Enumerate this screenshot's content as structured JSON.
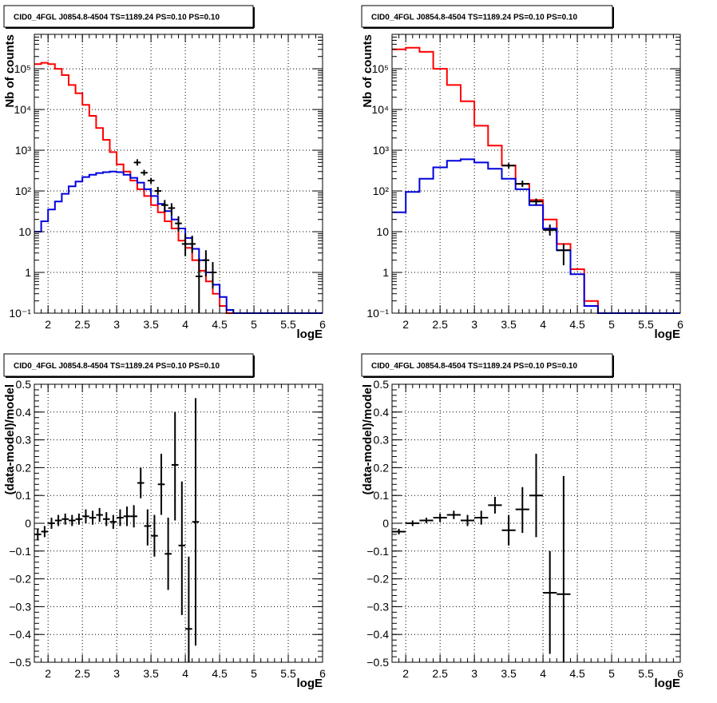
{
  "colors": {
    "data": "#000000",
    "total_model": "#ff0000",
    "source_model": "#0000dd",
    "grid": "#000000"
  },
  "chart_data": [
    {
      "type": "line",
      "title": "CID0_4FGL J0854.8-4504 TS=1189.24 PS=0.10 PS=0.10",
      "xlabel": "logE",
      "ylabel": "Nb of counts",
      "xlim": [
        1.8,
        6.0
      ],
      "ylim": [
        0.1,
        700000
      ],
      "yscale": "log",
      "grid": true,
      "xticks": [
        2,
        2.5,
        3,
        3.5,
        4,
        4.5,
        5,
        5.5,
        6
      ],
      "xtick_labels": [
        "2",
        "2.5",
        "3",
        "3.5",
        "4",
        "4.5",
        "5",
        "5.5",
        "6"
      ],
      "yticks": [
        0.1,
        1,
        10,
        100,
        1000,
        10000,
        100000
      ],
      "ytick_labels": [
        "10⁻¹",
        "1",
        "10",
        "10²",
        "10³",
        "10⁴",
        "10⁵"
      ],
      "series": [
        {
          "type": "step",
          "color_key": "total_model",
          "edges": [
            1.8,
            1.9,
            2.0,
            2.1,
            2.2,
            2.3,
            2.4,
            2.5,
            2.6,
            2.7,
            2.8,
            2.9,
            3.0,
            3.1,
            3.2,
            3.3,
            3.4,
            3.5,
            3.6,
            3.7,
            3.8,
            3.9,
            4.0,
            4.1,
            4.2,
            4.3,
            4.4,
            4.5,
            4.6,
            4.7,
            4.8,
            4.9,
            5.0,
            5.1,
            5.2,
            5.3,
            5.4,
            5.5,
            5.6,
            5.7,
            5.8,
            5.9,
            6.0
          ],
          "values": [
            130000,
            140000,
            130000,
            100000,
            70000,
            40000,
            25000,
            13000,
            7000,
            3500,
            1800,
            900,
            450,
            300,
            180,
            110,
            75,
            45,
            30,
            18,
            12,
            6,
            4,
            2,
            1.1,
            0.6,
            0.3,
            0.15,
            0.1,
            0.1,
            0.1,
            0.1,
            0.1,
            0.1,
            0.1,
            0.1,
            0.1,
            0.1,
            0.1,
            0.1,
            0.1,
            0.1
          ]
        },
        {
          "type": "step",
          "color_key": "source_model",
          "edges": [
            1.8,
            1.9,
            2.0,
            2.1,
            2.2,
            2.3,
            2.4,
            2.5,
            2.6,
            2.7,
            2.8,
            2.9,
            3.0,
            3.1,
            3.2,
            3.3,
            3.4,
            3.5,
            3.6,
            3.7,
            3.8,
            3.9,
            4.0,
            4.1,
            4.2,
            4.3,
            4.4,
            4.5,
            4.6,
            4.7,
            4.8,
            4.9,
            5.0,
            5.1,
            5.2,
            5.3,
            5.4,
            5.5,
            5.6,
            5.7,
            5.8,
            5.9,
            6.0
          ],
          "values": [
            10,
            18,
            35,
            55,
            85,
            130,
            170,
            220,
            250,
            275,
            290,
            300,
            290,
            250,
            210,
            160,
            110,
            75,
            48,
            32,
            20,
            12,
            7,
            3.8,
            2,
            1,
            0.5,
            0.25,
            0.12,
            0.1,
            0.1,
            0.1,
            0.1,
            0.1,
            0.1,
            0.1,
            0.1,
            0.1,
            0.1,
            0.1,
            0.1,
            0.1
          ]
        }
      ],
      "points": [
        {
          "x": 3.3,
          "y": 500,
          "xerr": 0.05,
          "ylo": 420,
          "yhi": 600
        },
        {
          "x": 3.4,
          "y": 280,
          "xerr": 0.05,
          "ylo": 240,
          "yhi": 330
        },
        {
          "x": 3.5,
          "y": 180,
          "xerr": 0.05,
          "ylo": 150,
          "yhi": 210
        },
        {
          "x": 3.6,
          "y": 100,
          "xerr": 0.05,
          "ylo": 80,
          "yhi": 125
        },
        {
          "x": 3.7,
          "y": 45,
          "xerr": 0.05,
          "ylo": 30,
          "yhi": 60
        },
        {
          "x": 3.8,
          "y": 38,
          "xerr": 0.05,
          "ylo": 25,
          "yhi": 50
        },
        {
          "x": 3.9,
          "y": 16,
          "xerr": 0.05,
          "ylo": 10,
          "yhi": 24
        },
        {
          "x": 4.0,
          "y": 5,
          "xerr": 0.05,
          "ylo": 2.5,
          "yhi": 9
        },
        {
          "x": 4.1,
          "y": 5,
          "xerr": 0.05,
          "ylo": 3,
          "yhi": 8
        },
        {
          "x": 4.2,
          "y": 0.8,
          "xerr": 0.05,
          "ylo": 0.1,
          "yhi": 2.2
        },
        {
          "x": 4.3,
          "y": 2,
          "xerr": 0.05,
          "ylo": 0.8,
          "yhi": 3.5
        },
        {
          "x": 4.4,
          "y": 1,
          "xerr": 0.05,
          "ylo": 0.4,
          "yhi": 1.8
        }
      ]
    },
    {
      "type": "line",
      "title": "CID0_4FGL J0854.8-4504 TS=1189.24 PS=0.10 PS=0.10",
      "xlabel": "logE",
      "ylabel": "Nb of counts",
      "xlim": [
        1.8,
        6.0
      ],
      "ylim": [
        0.1,
        700000
      ],
      "yscale": "log",
      "grid": true,
      "xticks": [
        2,
        2.5,
        3,
        3.5,
        4,
        4.5,
        5,
        5.5,
        6
      ],
      "xtick_labels": [
        "2",
        "2.5",
        "3",
        "3.5",
        "4",
        "4.5",
        "5",
        "5.5",
        "6"
      ],
      "yticks": [
        0.1,
        1,
        10,
        100,
        1000,
        10000,
        100000
      ],
      "ytick_labels": [
        "10⁻¹",
        "1",
        "10",
        "10²",
        "10³",
        "10⁴",
        "10⁵"
      ],
      "series": [
        {
          "type": "step",
          "color_key": "total_model",
          "edges": [
            1.8,
            2.0,
            2.2,
            2.4,
            2.6,
            2.8,
            3.0,
            3.2,
            3.4,
            3.6,
            3.8,
            4.0,
            4.2,
            4.4,
            4.6,
            4.8,
            5.0,
            5.2,
            5.4,
            5.6,
            5.8,
            6.0
          ],
          "values": [
            300000,
            330000,
            260000,
            100000,
            40000,
            16000,
            4000,
            1300,
            420,
            150,
            60,
            20,
            5,
            1.2,
            0.2,
            0.1,
            0.1,
            0.1,
            0.1,
            0.1,
            0.1
          ]
        },
        {
          "type": "step",
          "color_key": "source_model",
          "edges": [
            1.8,
            2.0,
            2.2,
            2.4,
            2.6,
            2.8,
            3.0,
            3.2,
            3.4,
            3.6,
            3.8,
            4.0,
            4.2,
            4.4,
            4.6,
            4.8,
            5.0,
            5.2,
            5.4,
            5.6,
            5.8,
            6.0
          ],
          "values": [
            30,
            95,
            200,
            380,
            550,
            600,
            500,
            350,
            200,
            110,
            45,
            12,
            3.5,
            0.9,
            0.15,
            0.1,
            0.1,
            0.1,
            0.1,
            0.1,
            0.1
          ]
        }
      ],
      "points": [
        {
          "x": 3.5,
          "y": 420,
          "xerr": 0.1,
          "ylo": 360,
          "yhi": 480
        },
        {
          "x": 3.7,
          "y": 150,
          "xerr": 0.1,
          "ylo": 125,
          "yhi": 180
        },
        {
          "x": 3.9,
          "y": 55,
          "xerr": 0.1,
          "ylo": 45,
          "yhi": 65
        },
        {
          "x": 4.1,
          "y": 11,
          "xerr": 0.1,
          "ylo": 8,
          "yhi": 15
        },
        {
          "x": 4.3,
          "y": 3.5,
          "xerr": 0.1,
          "ylo": 1.5,
          "yhi": 5
        }
      ]
    },
    {
      "type": "scatter",
      "title": "CID0_4FGL J0854.8-4504 TS=1189.24 PS=0.10 PS=0.10",
      "xlabel": "logE",
      "ylabel": "(data-model)/model",
      "xlim": [
        1.8,
        6.0
      ],
      "ylim": [
        -0.5,
        0.5
      ],
      "grid": true,
      "xticks": [
        2,
        2.5,
        3,
        3.5,
        4,
        4.5,
        5,
        5.5,
        6
      ],
      "xtick_labels": [
        "2",
        "2.5",
        "3",
        "3.5",
        "4",
        "4.5",
        "5",
        "5.5",
        "6"
      ],
      "yticks": [
        -0.5,
        -0.4,
        -0.3,
        -0.2,
        -0.1,
        0,
        0.1,
        0.2,
        0.3,
        0.4,
        0.5
      ],
      "ytick_labels": [
        "−0.5",
        "−0.4",
        "−0.3",
        "−0.2",
        "−0.1",
        "0",
        "0.1",
        "0.2",
        "0.3",
        "0.4",
        "0.5"
      ],
      "points": [
        {
          "x": 1.85,
          "y": -0.04,
          "xerr": 0.05,
          "ylo": -0.06,
          "yhi": -0.02
        },
        {
          "x": 1.95,
          "y": -0.03,
          "xerr": 0.05,
          "ylo": -0.05,
          "yhi": -0.01
        },
        {
          "x": 2.05,
          "y": 0.0,
          "xerr": 0.05,
          "ylo": -0.02,
          "yhi": 0.02
        },
        {
          "x": 2.15,
          "y": 0.01,
          "xerr": 0.05,
          "ylo": -0.01,
          "yhi": 0.03
        },
        {
          "x": 2.25,
          "y": 0.015,
          "xerr": 0.05,
          "ylo": -0.005,
          "yhi": 0.035
        },
        {
          "x": 2.35,
          "y": 0.01,
          "xerr": 0.05,
          "ylo": -0.01,
          "yhi": 0.03
        },
        {
          "x": 2.45,
          "y": 0.015,
          "xerr": 0.05,
          "ylo": -0.005,
          "yhi": 0.035
        },
        {
          "x": 2.55,
          "y": 0.025,
          "xerr": 0.05,
          "ylo": 0.0,
          "yhi": 0.05
        },
        {
          "x": 2.65,
          "y": 0.02,
          "xerr": 0.05,
          "ylo": -0.005,
          "yhi": 0.045
        },
        {
          "x": 2.75,
          "y": 0.03,
          "xerr": 0.05,
          "ylo": 0.005,
          "yhi": 0.055
        },
        {
          "x": 2.85,
          "y": 0.015,
          "xerr": 0.05,
          "ylo": -0.01,
          "yhi": 0.04
        },
        {
          "x": 2.95,
          "y": 0.005,
          "xerr": 0.05,
          "ylo": -0.02,
          "yhi": 0.03
        },
        {
          "x": 3.05,
          "y": 0.02,
          "xerr": 0.05,
          "ylo": -0.01,
          "yhi": 0.05
        },
        {
          "x": 3.15,
          "y": 0.025,
          "xerr": 0.05,
          "ylo": -0.01,
          "yhi": 0.06
        },
        {
          "x": 3.25,
          "y": 0.025,
          "xerr": 0.05,
          "ylo": -0.015,
          "yhi": 0.065
        },
        {
          "x": 3.35,
          "y": 0.145,
          "xerr": 0.05,
          "ylo": 0.09,
          "yhi": 0.2
        },
        {
          "x": 3.45,
          "y": -0.01,
          "xerr": 0.05,
          "ylo": -0.08,
          "yhi": 0.05
        },
        {
          "x": 3.55,
          "y": -0.045,
          "xerr": 0.05,
          "ylo": -0.12,
          "yhi": 0.03
        },
        {
          "x": 3.65,
          "y": 0.14,
          "xerr": 0.05,
          "ylo": 0.03,
          "yhi": 0.25
        },
        {
          "x": 3.75,
          "y": -0.11,
          "xerr": 0.05,
          "ylo": -0.24,
          "yhi": 0.02
        },
        {
          "x": 3.85,
          "y": 0.21,
          "xerr": 0.05,
          "ylo": 0.01,
          "yhi": 0.4
        },
        {
          "x": 3.95,
          "y": -0.08,
          "xerr": 0.05,
          "ylo": -0.33,
          "yhi": 0.15
        },
        {
          "x": 4.05,
          "y": -0.38,
          "xerr": 0.05,
          "ylo": -0.5,
          "yhi": -0.12
        },
        {
          "x": 4.15,
          "y": 0.005,
          "xerr": 0.05,
          "ylo": -0.44,
          "yhi": 0.45
        }
      ]
    },
    {
      "type": "scatter",
      "title": "CID0_4FGL J0854.8-4504 TS=1189.24 PS=0.10 PS=0.10",
      "xlabel": "logE",
      "ylabel": "(data-model)/model",
      "xlim": [
        1.8,
        6.0
      ],
      "ylim": [
        -0.5,
        0.5
      ],
      "grid": true,
      "xticks": [
        2,
        2.5,
        3,
        3.5,
        4,
        4.5,
        5,
        5.5,
        6
      ],
      "xtick_labels": [
        "2",
        "2.5",
        "3",
        "3.5",
        "4",
        "4.5",
        "5",
        "5.5",
        "6"
      ],
      "yticks": [
        -0.5,
        -0.4,
        -0.3,
        -0.2,
        -0.1,
        0,
        0.1,
        0.2,
        0.3,
        0.4,
        0.5
      ],
      "ytick_labels": [
        "−0.5",
        "−0.4",
        "−0.3",
        "−0.2",
        "−0.1",
        "0",
        "0.1",
        "0.2",
        "0.3",
        "0.4",
        "0.5"
      ],
      "points": [
        {
          "x": 1.9,
          "y": -0.03,
          "xerr": 0.1,
          "ylo": -0.04,
          "yhi": -0.02
        },
        {
          "x": 2.1,
          "y": 0.0,
          "xerr": 0.1,
          "ylo": -0.01,
          "yhi": 0.01
        },
        {
          "x": 2.3,
          "y": 0.01,
          "xerr": 0.1,
          "ylo": 0.0,
          "yhi": 0.02
        },
        {
          "x": 2.5,
          "y": 0.02,
          "xerr": 0.1,
          "ylo": 0.005,
          "yhi": 0.035
        },
        {
          "x": 2.7,
          "y": 0.03,
          "xerr": 0.1,
          "ylo": 0.015,
          "yhi": 0.045
        },
        {
          "x": 2.9,
          "y": 0.01,
          "xerr": 0.1,
          "ylo": -0.01,
          "yhi": 0.03
        },
        {
          "x": 3.1,
          "y": 0.02,
          "xerr": 0.1,
          "ylo": -0.005,
          "yhi": 0.045
        },
        {
          "x": 3.3,
          "y": 0.065,
          "xerr": 0.1,
          "ylo": 0.035,
          "yhi": 0.095
        },
        {
          "x": 3.5,
          "y": -0.025,
          "xerr": 0.1,
          "ylo": -0.08,
          "yhi": 0.03
        },
        {
          "x": 3.7,
          "y": 0.05,
          "xerr": 0.1,
          "ylo": -0.035,
          "yhi": 0.13
        },
        {
          "x": 3.9,
          "y": 0.1,
          "xerr": 0.1,
          "ylo": -0.05,
          "yhi": 0.25
        },
        {
          "x": 4.1,
          "y": -0.25,
          "xerr": 0.1,
          "ylo": -0.47,
          "yhi": -0.1
        },
        {
          "x": 4.3,
          "y": -0.255,
          "xerr": 0.1,
          "ylo": -0.5,
          "yhi": 0.17
        }
      ]
    }
  ]
}
